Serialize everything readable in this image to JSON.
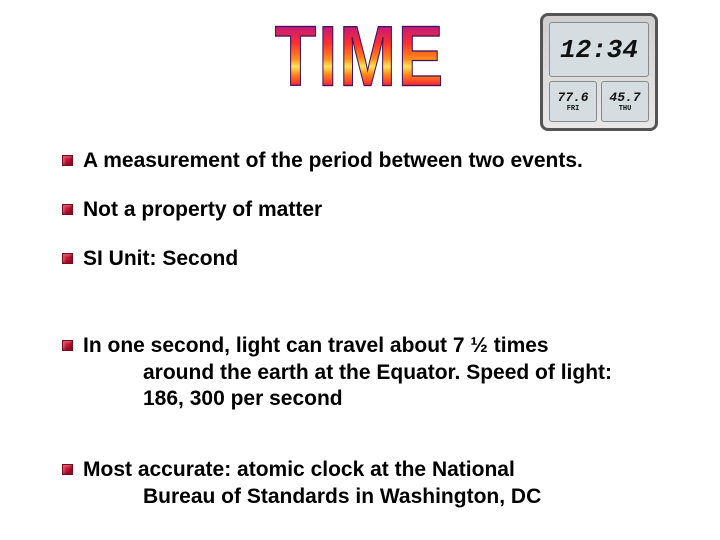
{
  "title": "TIME",
  "clock": {
    "time": "12:34",
    "left_value": "77.6",
    "left_label": "FRI",
    "right_value": "45.7",
    "right_label": "THU"
  },
  "bullets": [
    {
      "text": "A measurement of the period between two events."
    },
    {
      "text": "Not a property of matter"
    },
    {
      "text": "SI Unit:  Second"
    },
    {
      "line1": "In one second, light can travel about 7 ½ times",
      "cont": "around the earth at the Equator.   Speed of light:  186, 300 per second"
    },
    {
      "line1": "Most accurate:  atomic clock at the National",
      "cont": "Bureau of Standards in Washington, DC"
    }
  ],
  "colors": {
    "bullet": "#c8102e",
    "text": "#000000",
    "background": "#ffffff"
  }
}
